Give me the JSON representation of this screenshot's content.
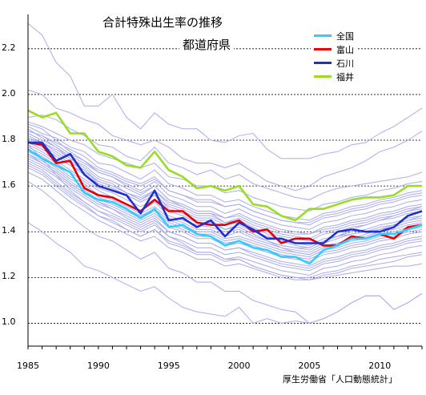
{
  "chart_data": {
    "type": "line",
    "title": "合計特殊出生率の推移",
    "subtitle": "都道府県",
    "source": "厚生労働省「人口動態統計」",
    "x": [
      1985,
      1986,
      1987,
      1988,
      1989,
      1990,
      1991,
      1992,
      1993,
      1994,
      1995,
      1996,
      1997,
      1998,
      1999,
      2000,
      2001,
      2002,
      2003,
      2004,
      2005,
      2006,
      2007,
      2008,
      2009,
      2010,
      2011,
      2012,
      2013
    ],
    "xticks": [
      "1985",
      "1990",
      "1995",
      "2000",
      "2005",
      "2010"
    ],
    "yticks": [
      "1.0",
      "1.2",
      "1.4",
      "1.6",
      "1.8",
      "2.0",
      "2.2"
    ],
    "xlim": [
      1985,
      2013
    ],
    "ylim": [
      0.9,
      2.35
    ],
    "grid": "horizontal dashed",
    "legend_position": "top-right",
    "highlight_series": [
      {
        "name": "全国",
        "color": "#33ccff",
        "values": [
          1.76,
          1.72,
          1.69,
          1.66,
          1.57,
          1.54,
          1.53,
          1.5,
          1.46,
          1.5,
          1.42,
          1.43,
          1.39,
          1.38,
          1.34,
          1.36,
          1.33,
          1.32,
          1.29,
          1.29,
          1.26,
          1.32,
          1.34,
          1.37,
          1.37,
          1.39,
          1.39,
          1.41,
          1.43
        ]
      },
      {
        "name": "富山",
        "color": "#e60000",
        "values": [
          1.79,
          1.78,
          1.7,
          1.71,
          1.59,
          1.56,
          1.55,
          1.52,
          1.49,
          1.54,
          1.49,
          1.49,
          1.44,
          1.43,
          1.43,
          1.45,
          1.4,
          1.41,
          1.35,
          1.37,
          1.37,
          1.34,
          1.34,
          1.38,
          1.37,
          1.39,
          1.37,
          1.42,
          1.43
        ]
      },
      {
        "name": "石川",
        "color": "#1f2fd1",
        "values": [
          1.79,
          1.79,
          1.71,
          1.74,
          1.65,
          1.6,
          1.58,
          1.56,
          1.48,
          1.58,
          1.45,
          1.46,
          1.42,
          1.45,
          1.38,
          1.44,
          1.41,
          1.37,
          1.37,
          1.35,
          1.35,
          1.35,
          1.4,
          1.41,
          1.4,
          1.4,
          1.42,
          1.47,
          1.49
        ]
      },
      {
        "name": "福井",
        "color": "#99dd22",
        "values": [
          1.93,
          1.9,
          1.92,
          1.83,
          1.83,
          1.75,
          1.73,
          1.69,
          1.68,
          1.75,
          1.67,
          1.64,
          1.59,
          1.6,
          1.58,
          1.6,
          1.52,
          1.51,
          1.47,
          1.45,
          1.5,
          1.5,
          1.52,
          1.54,
          1.55,
          1.55,
          1.56,
          1.6,
          1.6
        ]
      }
    ],
    "background_series_color": "#a9acec",
    "background_series": [
      [
        2.31,
        2.26,
        2.14,
        2.08,
        1.95,
        1.95,
        2.0,
        1.9,
        1.85,
        1.92,
        1.87,
        1.85,
        1.85,
        1.8,
        1.79,
        1.82,
        1.83,
        1.76,
        1.72,
        1.72,
        1.72,
        1.74,
        1.75,
        1.78,
        1.79,
        1.83,
        1.86,
        1.9,
        1.94
      ],
      [
        2.02,
        2.0,
        1.94,
        1.92,
        1.89,
        1.87,
        1.82,
        1.8,
        1.78,
        1.8,
        1.77,
        1.72,
        1.7,
        1.7,
        1.68,
        1.7,
        1.66,
        1.62,
        1.6,
        1.58,
        1.6,
        1.64,
        1.66,
        1.68,
        1.71,
        1.75,
        1.77,
        1.8,
        1.84
      ],
      [
        1.9,
        1.91,
        1.89,
        1.85,
        1.82,
        1.78,
        1.77,
        1.73,
        1.71,
        1.77,
        1.7,
        1.68,
        1.65,
        1.67,
        1.63,
        1.65,
        1.61,
        1.59,
        1.57,
        1.55,
        1.54,
        1.57,
        1.59,
        1.6,
        1.61,
        1.62,
        1.63,
        1.64,
        1.66
      ],
      [
        1.88,
        1.86,
        1.83,
        1.8,
        1.78,
        1.74,
        1.72,
        1.7,
        1.68,
        1.7,
        1.64,
        1.63,
        1.6,
        1.6,
        1.57,
        1.58,
        1.55,
        1.53,
        1.51,
        1.5,
        1.49,
        1.52,
        1.53,
        1.55,
        1.56,
        1.58,
        1.59,
        1.61,
        1.62
      ],
      [
        1.86,
        1.83,
        1.81,
        1.77,
        1.75,
        1.7,
        1.69,
        1.66,
        1.63,
        1.67,
        1.61,
        1.59,
        1.56,
        1.56,
        1.53,
        1.54,
        1.51,
        1.49,
        1.47,
        1.46,
        1.45,
        1.48,
        1.49,
        1.51,
        1.52,
        1.54,
        1.55,
        1.57,
        1.58
      ],
      [
        1.84,
        1.82,
        1.79,
        1.76,
        1.73,
        1.68,
        1.66,
        1.63,
        1.61,
        1.64,
        1.58,
        1.56,
        1.54,
        1.54,
        1.51,
        1.52,
        1.49,
        1.47,
        1.45,
        1.44,
        1.43,
        1.46,
        1.47,
        1.49,
        1.5,
        1.52,
        1.53,
        1.55,
        1.56
      ],
      [
        1.83,
        1.8,
        1.77,
        1.73,
        1.7,
        1.66,
        1.64,
        1.61,
        1.58,
        1.62,
        1.56,
        1.54,
        1.51,
        1.51,
        1.48,
        1.5,
        1.47,
        1.45,
        1.43,
        1.42,
        1.41,
        1.44,
        1.45,
        1.47,
        1.48,
        1.5,
        1.51,
        1.53,
        1.54
      ],
      [
        1.82,
        1.79,
        1.76,
        1.72,
        1.69,
        1.64,
        1.62,
        1.59,
        1.56,
        1.6,
        1.54,
        1.52,
        1.49,
        1.49,
        1.46,
        1.48,
        1.45,
        1.43,
        1.41,
        1.4,
        1.39,
        1.42,
        1.43,
        1.45,
        1.46,
        1.48,
        1.49,
        1.51,
        1.52
      ],
      [
        1.81,
        1.78,
        1.74,
        1.7,
        1.67,
        1.62,
        1.6,
        1.57,
        1.54,
        1.58,
        1.52,
        1.5,
        1.47,
        1.47,
        1.44,
        1.46,
        1.43,
        1.41,
        1.39,
        1.38,
        1.37,
        1.4,
        1.41,
        1.43,
        1.44,
        1.46,
        1.47,
        1.49,
        1.5
      ],
      [
        1.8,
        1.77,
        1.73,
        1.69,
        1.65,
        1.61,
        1.59,
        1.56,
        1.53,
        1.56,
        1.51,
        1.49,
        1.46,
        1.46,
        1.43,
        1.44,
        1.41,
        1.4,
        1.38,
        1.37,
        1.36,
        1.39,
        1.4,
        1.42,
        1.43,
        1.45,
        1.46,
        1.48,
        1.49
      ],
      [
        1.78,
        1.75,
        1.71,
        1.67,
        1.63,
        1.59,
        1.57,
        1.54,
        1.51,
        1.54,
        1.49,
        1.47,
        1.44,
        1.44,
        1.41,
        1.43,
        1.4,
        1.38,
        1.36,
        1.35,
        1.34,
        1.37,
        1.38,
        1.4,
        1.41,
        1.43,
        1.44,
        1.46,
        1.47
      ],
      [
        1.77,
        1.74,
        1.7,
        1.66,
        1.62,
        1.58,
        1.55,
        1.52,
        1.49,
        1.53,
        1.47,
        1.45,
        1.43,
        1.42,
        1.4,
        1.41,
        1.38,
        1.36,
        1.34,
        1.33,
        1.32,
        1.35,
        1.37,
        1.39,
        1.4,
        1.41,
        1.42,
        1.44,
        1.45
      ],
      [
        1.76,
        1.73,
        1.69,
        1.64,
        1.61,
        1.56,
        1.54,
        1.51,
        1.48,
        1.51,
        1.46,
        1.44,
        1.41,
        1.41,
        1.38,
        1.4,
        1.37,
        1.35,
        1.33,
        1.32,
        1.31,
        1.34,
        1.35,
        1.37,
        1.38,
        1.4,
        1.41,
        1.43,
        1.44
      ],
      [
        1.75,
        1.72,
        1.68,
        1.63,
        1.6,
        1.55,
        1.53,
        1.5,
        1.47,
        1.5,
        1.45,
        1.43,
        1.4,
        1.4,
        1.37,
        1.38,
        1.36,
        1.34,
        1.32,
        1.31,
        1.3,
        1.33,
        1.34,
        1.36,
        1.37,
        1.39,
        1.4,
        1.42,
        1.43
      ],
      [
        1.74,
        1.71,
        1.67,
        1.62,
        1.58,
        1.54,
        1.52,
        1.49,
        1.46,
        1.49,
        1.44,
        1.42,
        1.39,
        1.39,
        1.36,
        1.37,
        1.35,
        1.33,
        1.31,
        1.3,
        1.29,
        1.32,
        1.33,
        1.35,
        1.36,
        1.38,
        1.39,
        1.41,
        1.42
      ],
      [
        1.73,
        1.7,
        1.66,
        1.61,
        1.57,
        1.53,
        1.51,
        1.48,
        1.45,
        1.48,
        1.43,
        1.41,
        1.38,
        1.38,
        1.35,
        1.36,
        1.34,
        1.32,
        1.3,
        1.29,
        1.28,
        1.31,
        1.32,
        1.34,
        1.35,
        1.37,
        1.38,
        1.4,
        1.41
      ],
      [
        1.72,
        1.69,
        1.65,
        1.6,
        1.56,
        1.52,
        1.5,
        1.47,
        1.44,
        1.47,
        1.42,
        1.4,
        1.37,
        1.37,
        1.34,
        1.35,
        1.33,
        1.31,
        1.29,
        1.28,
        1.27,
        1.3,
        1.31,
        1.33,
        1.34,
        1.36,
        1.37,
        1.39,
        1.4
      ],
      [
        1.71,
        1.68,
        1.64,
        1.59,
        1.55,
        1.51,
        1.48,
        1.45,
        1.42,
        1.45,
        1.4,
        1.38,
        1.35,
        1.35,
        1.32,
        1.33,
        1.31,
        1.29,
        1.27,
        1.26,
        1.25,
        1.28,
        1.29,
        1.31,
        1.32,
        1.34,
        1.35,
        1.37,
        1.38
      ],
      [
        1.7,
        1.67,
        1.62,
        1.57,
        1.53,
        1.49,
        1.46,
        1.43,
        1.4,
        1.43,
        1.38,
        1.36,
        1.33,
        1.33,
        1.3,
        1.31,
        1.29,
        1.27,
        1.25,
        1.24,
        1.23,
        1.26,
        1.27,
        1.29,
        1.3,
        1.32,
        1.33,
        1.35,
        1.36
      ],
      [
        1.68,
        1.65,
        1.6,
        1.55,
        1.51,
        1.47,
        1.44,
        1.41,
        1.38,
        1.41,
        1.36,
        1.34,
        1.31,
        1.31,
        1.28,
        1.29,
        1.27,
        1.25,
        1.23,
        1.22,
        1.21,
        1.24,
        1.25,
        1.27,
        1.28,
        1.3,
        1.31,
        1.33,
        1.34
      ],
      [
        1.87,
        1.85,
        1.8,
        1.75,
        1.71,
        1.66,
        1.64,
        1.6,
        1.57,
        1.6,
        1.54,
        1.51,
        1.48,
        1.48,
        1.44,
        1.45,
        1.42,
        1.39,
        1.36,
        1.34,
        1.33,
        1.36,
        1.38,
        1.41,
        1.43,
        1.45,
        1.47,
        1.49,
        1.51
      ],
      [
        1.85,
        1.81,
        1.77,
        1.72,
        1.68,
        1.63,
        1.61,
        1.57,
        1.54,
        1.57,
        1.5,
        1.48,
        1.45,
        1.45,
        1.41,
        1.42,
        1.39,
        1.36,
        1.33,
        1.31,
        1.3,
        1.33,
        1.35,
        1.37,
        1.39,
        1.41,
        1.43,
        1.45,
        1.47
      ],
      [
        1.81,
        1.79,
        1.75,
        1.71,
        1.67,
        1.61,
        1.59,
        1.56,
        1.53,
        1.56,
        1.49,
        1.47,
        1.44,
        1.44,
        1.41,
        1.42,
        1.39,
        1.36,
        1.34,
        1.33,
        1.33,
        1.36,
        1.38,
        1.39,
        1.4,
        1.42,
        1.43,
        1.45,
        1.46
      ],
      [
        1.79,
        1.76,
        1.73,
        1.69,
        1.66,
        1.62,
        1.6,
        1.57,
        1.55,
        1.58,
        1.53,
        1.51,
        1.48,
        1.48,
        1.46,
        1.47,
        1.44,
        1.42,
        1.4,
        1.39,
        1.39,
        1.41,
        1.42,
        1.44,
        1.45,
        1.47,
        1.48,
        1.5,
        1.51
      ],
      [
        1.84,
        1.82,
        1.78,
        1.74,
        1.71,
        1.67,
        1.65,
        1.62,
        1.6,
        1.63,
        1.58,
        1.56,
        1.53,
        1.53,
        1.51,
        1.52,
        1.49,
        1.47,
        1.45,
        1.44,
        1.44,
        1.47,
        1.48,
        1.5,
        1.51,
        1.53,
        1.54,
        1.56,
        1.57
      ],
      [
        1.74,
        1.7,
        1.66,
        1.61,
        1.57,
        1.53,
        1.5,
        1.46,
        1.43,
        1.46,
        1.4,
        1.38,
        1.35,
        1.35,
        1.32,
        1.33,
        1.3,
        1.28,
        1.26,
        1.25,
        1.24,
        1.27,
        1.28,
        1.3,
        1.31,
        1.33,
        1.34,
        1.36,
        1.37
      ],
      [
        1.69,
        1.66,
        1.61,
        1.56,
        1.52,
        1.47,
        1.45,
        1.41,
        1.38,
        1.41,
        1.35,
        1.33,
        1.3,
        1.3,
        1.27,
        1.28,
        1.25,
        1.23,
        1.21,
        1.2,
        1.2,
        1.22,
        1.23,
        1.25,
        1.26,
        1.28,
        1.29,
        1.3,
        1.31
      ],
      [
        1.66,
        1.63,
        1.58,
        1.53,
        1.49,
        1.45,
        1.42,
        1.39,
        1.36,
        1.38,
        1.33,
        1.31,
        1.28,
        1.28,
        1.25,
        1.26,
        1.24,
        1.22,
        1.2,
        1.19,
        1.19,
        1.21,
        1.22,
        1.24,
        1.25,
        1.26,
        1.27,
        1.29,
        1.3
      ],
      [
        1.78,
        1.72,
        1.65,
        1.58,
        1.53,
        1.49,
        1.47,
        1.44,
        1.41,
        1.44,
        1.38,
        1.35,
        1.31,
        1.31,
        1.28,
        1.28,
        1.25,
        1.23,
        1.21,
        1.2,
        1.19,
        1.2,
        1.21,
        1.22,
        1.23,
        1.24,
        1.25,
        1.25,
        1.26
      ],
      [
        1.62,
        1.58,
        1.53,
        1.47,
        1.42,
        1.38,
        1.36,
        1.32,
        1.28,
        1.31,
        1.24,
        1.22,
        1.18,
        1.18,
        1.14,
        1.14,
        1.1,
        1.08,
        1.06,
        1.05,
        1.0,
        1.02,
        1.05,
        1.09,
        1.12,
        1.12,
        1.06,
        1.09,
        1.13
      ],
      [
        1.44,
        1.4,
        1.35,
        1.31,
        1.25,
        1.23,
        1.2,
        1.17,
        1.14,
        1.16,
        1.11,
        1.07,
        1.05,
        1.04,
        1.03,
        1.07,
        1.0,
        1.02,
        1.0,
        1.01,
        1.0,
        1.02,
        1.05,
        1.09,
        1.12,
        1.12,
        1.06,
        1.09,
        1.13
      ]
    ]
  }
}
